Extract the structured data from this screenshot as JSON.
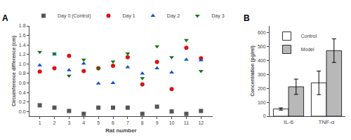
{
  "chart_data": [
    {
      "type": "scatter",
      "title": "A",
      "xlabel": "Rat number",
      "ylabel": "Circumference difference (cm)",
      "x": [
        1,
        2,
        3,
        4,
        5,
        6,
        7,
        8,
        9,
        10,
        11,
        12
      ],
      "xlim": [
        0.3,
        12.8
      ],
      "xticks": [
        1,
        2,
        3,
        4,
        5,
        6,
        7,
        8,
        9,
        10,
        11,
        12
      ],
      "ylim": [
        -0.1,
        1.8
      ],
      "yticks": [
        {
          "value": 0.0,
          "label": "0.0"
        },
        0.2,
        0.4,
        0.6,
        0.8,
        {
          "value": 1.0,
          "label": "1.0"
        },
        1.2,
        1.4,
        1.6,
        1.8
      ],
      "grid": false,
      "legend": "upper left",
      "series": [
        {
          "name": "Day 0 (Control)",
          "color": "#555555",
          "marker": "square",
          "values": [
            0.13,
            0.08,
            0.01,
            -0.05,
            0.08,
            0.08,
            0.08,
            -0.05,
            0.1,
            0.0,
            -0.05,
            0.01
          ]
        },
        {
          "name": "Day 1",
          "color": "#DD1111",
          "marker": "circle",
          "values": [
            0.84,
            0.91,
            1.17,
            0.85,
            0.91,
            0.96,
            1.14,
            0.57,
            1.04,
            0.47,
            1.34,
            1.12
          ]
        },
        {
          "name": "Day 2",
          "color": "#1155CC",
          "marker": "triangle-up",
          "values": [
            0.97,
            1.2,
            0.87,
            1.01,
            0.59,
            0.6,
            0.93,
            0.8,
            0.91,
            0.82,
            1.09,
            1.08
          ]
        },
        {
          "name": "Day 3",
          "color": "#117711",
          "marker": "triangle-down",
          "values": [
            1.25,
            1.22,
            0.75,
            1.09,
            0.9,
            1.05,
            1.22,
            0.7,
            1.37,
            1.14,
            1.5,
            0.85
          ]
        }
      ]
    },
    {
      "type": "bar",
      "title": "B",
      "ylabel": "Concentration (pg/ml)",
      "categories": [
        "IL-6",
        "TNF-α"
      ],
      "ylim": [
        0,
        650
      ],
      "yticks": [
        0,
        100,
        200,
        300,
        400,
        500,
        600
      ],
      "grid": false,
      "legend": "upper left",
      "series": [
        {
          "name": "Control",
          "color": "#ffffff",
          "values": [
            52,
            240
          ],
          "errors": [
            8,
            85
          ]
        },
        {
          "name": "Model",
          "color": "#b8b8b8",
          "values": [
            212,
            472
          ],
          "errors": [
            55,
            85
          ]
        }
      ]
    }
  ]
}
